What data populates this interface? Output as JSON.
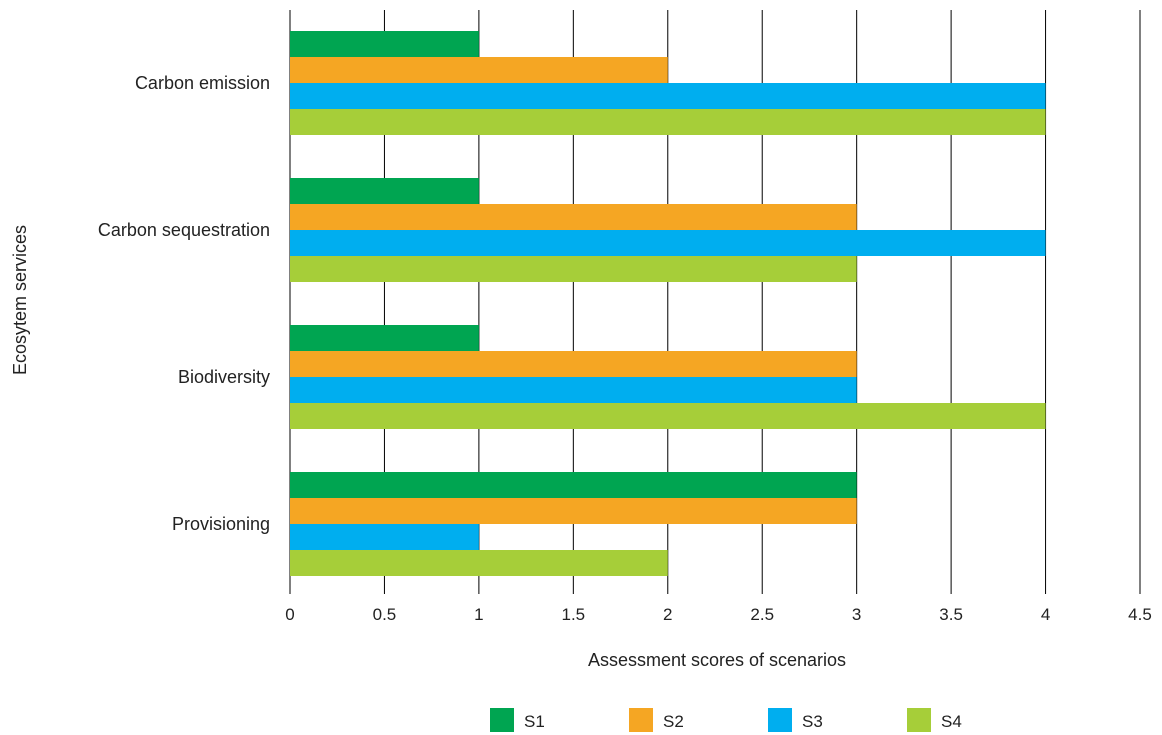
{
  "chart_data": {
    "type": "bar",
    "orientation": "horizontal",
    "title": "",
    "xlabel": "Assessment scores of scenarios",
    "ylabel": "Ecosytem services",
    "categories": [
      "Carbon emission",
      "Carbon sequestration",
      "Biodiversity",
      "Provisioning"
    ],
    "series": [
      {
        "name": "S1",
        "color": "#00a551",
        "values": [
          1,
          1,
          1,
          3
        ]
      },
      {
        "name": "S2",
        "color": "#f5a623",
        "values": [
          2,
          3,
          3,
          3
        ]
      },
      {
        "name": "S3",
        "color": "#00aeef",
        "values": [
          4,
          4,
          3,
          1
        ]
      },
      {
        "name": "S4",
        "color": "#a6ce39",
        "values": [
          4,
          3,
          4,
          2
        ]
      }
    ],
    "xlim": [
      0,
      4.5
    ],
    "xticks": [
      "0",
      "0.5",
      "1",
      "1.5",
      "2",
      "2.5",
      "3",
      "3.5",
      "4",
      "4.5"
    ],
    "grid": "vertical",
    "legend_position": "bottom"
  }
}
